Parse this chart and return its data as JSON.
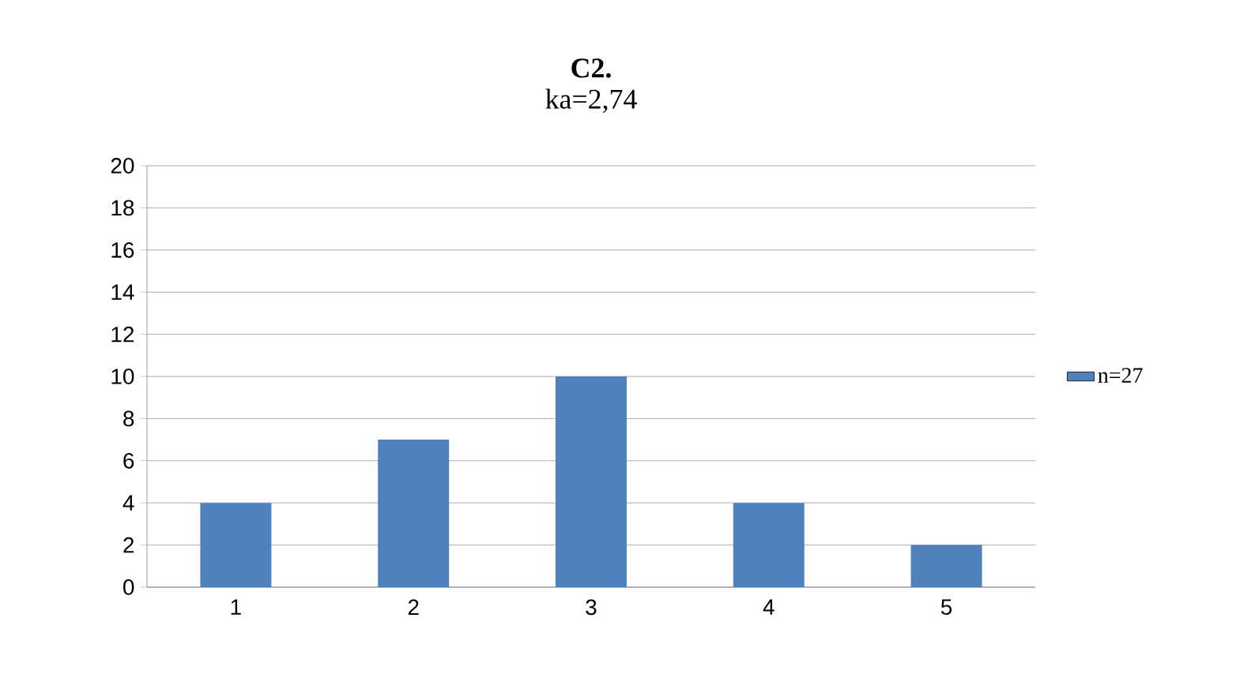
{
  "chart_data": {
    "type": "bar",
    "title": "C2.",
    "subtitle": "ka=2,74",
    "categories": [
      "1",
      "2",
      "3",
      "4",
      "5"
    ],
    "series": [
      {
        "name": "n=27",
        "color": "#4f81bd",
        "values": [
          4,
          7,
          10,
          4,
          2
        ]
      }
    ],
    "ylim": [
      0,
      20
    ],
    "yticks": [
      0,
      2,
      4,
      6,
      8,
      10,
      12,
      14,
      16,
      18,
      20
    ],
    "grid": "y",
    "legend": "right"
  }
}
